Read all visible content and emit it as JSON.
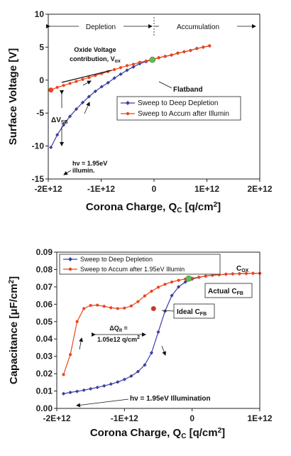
{
  "chart_data": [
    {
      "type": "line",
      "xlabel": "Corona Charge, Q",
      "xlabel_sub": "C",
      "xlabel_unit": " [q/cm",
      "xlabel_sup": "2",
      "xlabel_end": "]",
      "ylabel": "Surface Voltage [V]",
      "xlim": [
        -2000000000000.0,
        2000000000000.0
      ],
      "ylim": [
        -15,
        10
      ],
      "x_ticks": [
        "-2E+12",
        "-1E+12",
        "0",
        "1E+12",
        "2E+12"
      ],
      "x_tick_values": [
        -2000000000000.0,
        -1000000000000.0,
        0,
        1000000000000.0,
        2000000000000.0
      ],
      "y_ticks": [
        "10",
        "5",
        "0",
        "-5",
        "-10",
        "-15"
      ],
      "y_tick_values": [
        10,
        5,
        0,
        -5,
        -10,
        -15
      ],
      "grid": false,
      "legend_position": "center-right",
      "regions": [
        {
          "label": "Depletion"
        },
        {
          "label": "Accumulation"
        }
      ],
      "annotations": {
        "oxide_line1": "Oxide Voltage",
        "oxide_line2": "contribution, V",
        "oxide_sub": "ox",
        "flatband": "Flatband",
        "delta_v": "ΔV",
        "delta_v_sub": "SB",
        "illum_line1": "hν = 1.95eV",
        "illum_line2": "illumin."
      },
      "series": [
        {
          "name": "Sweep to Deep Depletion",
          "color": "#3a3ea0",
          "marker": "diamond",
          "x": [
            -1950000000000.0,
            -1830000000000.0,
            -1710000000000.0,
            -1590000000000.0,
            -1470000000000.0,
            -1350000000000.0,
            -1230000000000.0,
            -1110000000000.0,
            -990000000000.0,
            -870000000000.0,
            -750000000000.0,
            -630000000000.0,
            -510000000000.0,
            -390000000000.0,
            -270000000000.0,
            -150000000000.0,
            -30000000000.0,
            90000000000.0,
            210000000000.0,
            330000000000.0,
            450000000000.0,
            570000000000.0,
            690000000000.0,
            810000000000.0,
            930000000000.0,
            1050000000000.0
          ],
          "y": [
            -10.2,
            -8.3,
            -6.8,
            -5.5,
            -4.4,
            -3.4,
            -2.5,
            -1.7,
            -1.0,
            -0.4,
            0.3,
            0.9,
            1.5,
            2.0,
            2.5,
            2.8,
            3.1,
            3.4,
            3.6,
            3.8,
            4.1,
            4.3,
            4.5,
            4.8,
            5.0,
            5.2
          ]
        },
        {
          "name": "Sweep to Accum after Illumin",
          "color": "#e8461c",
          "marker": "circle",
          "x": [
            -1950000000000.0,
            -1830000000000.0,
            -1710000000000.0,
            -1590000000000.0,
            -1470000000000.0,
            -1350000000000.0,
            -1230000000000.0,
            -1110000000000.0,
            -990000000000.0,
            -870000000000.0,
            -750000000000.0,
            -630000000000.0,
            -510000000000.0,
            -390000000000.0,
            -270000000000.0,
            -150000000000.0,
            -30000000000.0,
            90000000000.0,
            210000000000.0,
            330000000000.0,
            450000000000.0,
            570000000000.0,
            690000000000.0,
            810000000000.0,
            930000000000.0,
            1050000000000.0
          ],
          "y": [
            -1.5,
            -1.1,
            -0.8,
            -0.5,
            -0.2,
            0.1,
            0.4,
            0.7,
            1.0,
            1.3,
            1.6,
            1.9,
            2.2,
            2.4,
            2.7,
            2.9,
            3.1,
            3.4,
            3.6,
            3.8,
            4.1,
            4.3,
            4.5,
            4.8,
            5.0,
            5.2
          ]
        }
      ]
    },
    {
      "type": "line",
      "xlabel": "Corona Charge, Q",
      "xlabel_sub": "C",
      "xlabel_unit": " [q/cm",
      "xlabel_sup": "2",
      "xlabel_end": "]",
      "ylabel": "Capacitance [μF/cm",
      "ylabel_sup": "2",
      "ylabel_end": "]",
      "xlim": [
        -2000000000000.0,
        1000000000000.0
      ],
      "ylim": [
        0,
        0.09
      ],
      "x_ticks": [
        "-2E+12",
        "-1E+12",
        "0",
        "1E+12"
      ],
      "x_tick_values": [
        -2000000000000.0,
        -1000000000000.0,
        0,
        1000000000000.0
      ],
      "y_ticks": [
        "0.09",
        "0.08",
        "0.07",
        "0.06",
        "0.05",
        "0.04",
        "0.03",
        "0.02",
        "0.01",
        "0.00"
      ],
      "y_tick_values": [
        0.09,
        0.08,
        0.07,
        0.06,
        0.05,
        0.04,
        0.03,
        0.02,
        0.01,
        0
      ],
      "grid": false,
      "legend_position": "top",
      "annotations": {
        "cox": "C",
        "cox_sub": "OX",
        "actual": "Actual C",
        "actual_sub": "FB",
        "ideal": "Ideal C",
        "ideal_sub": "FB",
        "dq_line1": "ΔQ",
        "dq_sub": "it",
        "dq_eq": " =",
        "dq_line2": "1.05e12 q/cm",
        "dq_sup": "2",
        "illum": "hν = 1.95eV Illumination"
      },
      "series": [
        {
          "name": "Sweep to Deep Depletion",
          "color": "#3a3ea0",
          "marker": "diamond",
          "x": [
            -1900000000000.0,
            -1800000000000.0,
            -1700000000000.0,
            -1600000000000.0,
            -1500000000000.0,
            -1400000000000.0,
            -1300000000000.0,
            -1200000000000.0,
            -1100000000000.0,
            -1000000000000.0,
            -900000000000.0,
            -800000000000.0,
            -700000000000.0,
            -600000000000.0,
            -500000000000.0,
            -400000000000.0,
            -300000000000.0,
            -200000000000.0,
            -100000000000.0,
            0.0,
            100000000000.0,
            200000000000.0,
            300000000000.0,
            400000000000.0,
            500000000000.0,
            600000000000.0,
            700000000000.0,
            800000000000.0,
            900000000000.0,
            1000000000000.0
          ],
          "y": [
            0.0085,
            0.0092,
            0.0098,
            0.0105,
            0.0113,
            0.0121,
            0.013,
            0.014,
            0.0152,
            0.0167,
            0.0186,
            0.0212,
            0.025,
            0.032,
            0.044,
            0.056,
            0.065,
            0.07,
            0.0728,
            0.0745,
            0.0755,
            0.0762,
            0.0767,
            0.077,
            0.0773,
            0.0775,
            0.0776,
            0.0777,
            0.0778,
            0.0778
          ]
        },
        {
          "name": "Sweep to Accum after 1.95eV Illumin",
          "color": "#e8461c",
          "marker": "circle",
          "x": [
            -1900000000000.0,
            -1800000000000.0,
            -1700000000000.0,
            -1600000000000.0,
            -1500000000000.0,
            -1400000000000.0,
            -1300000000000.0,
            -1200000000000.0,
            -1100000000000.0,
            -1000000000000.0,
            -900000000000.0,
            -800000000000.0,
            -700000000000.0,
            -600000000000.0,
            -500000000000.0,
            -400000000000.0,
            -300000000000.0,
            -200000000000.0,
            -100000000000.0,
            0.0,
            100000000000.0,
            200000000000.0,
            300000000000.0,
            400000000000.0,
            500000000000.0,
            600000000000.0,
            700000000000.0,
            800000000000.0,
            900000000000.0,
            1000000000000.0
          ],
          "y": [
            0.0195,
            0.031,
            0.05,
            0.0575,
            0.0593,
            0.0595,
            0.0588,
            0.058,
            0.0575,
            0.0578,
            0.059,
            0.0615,
            0.0648,
            0.0675,
            0.0698,
            0.0715,
            0.0728,
            0.0738,
            0.0745,
            0.075,
            0.0756,
            0.0762,
            0.0767,
            0.077,
            0.0773,
            0.0775,
            0.0776,
            0.0777,
            0.0778,
            0.0778
          ]
        }
      ]
    }
  ]
}
